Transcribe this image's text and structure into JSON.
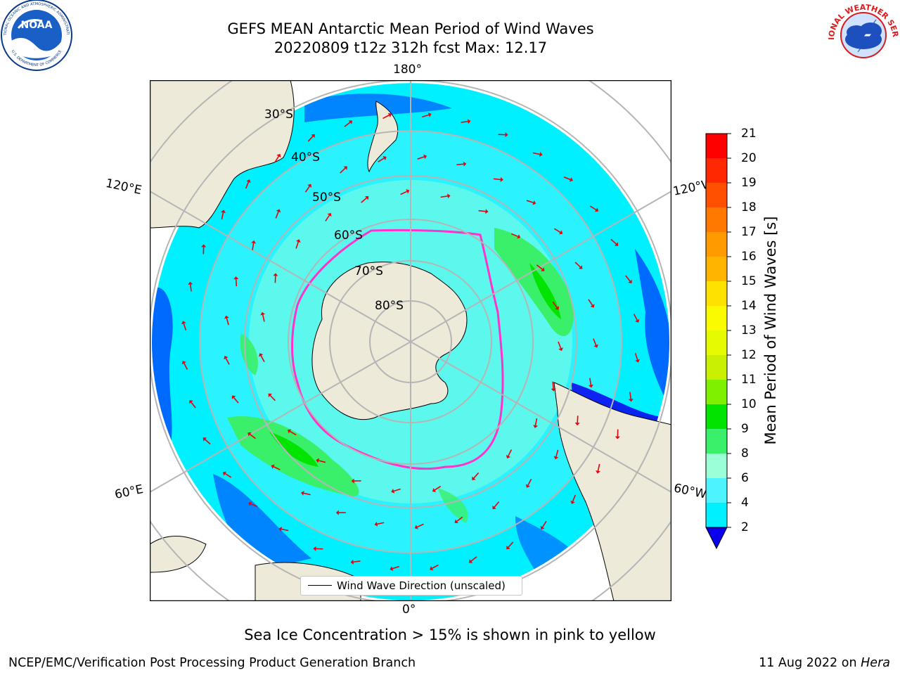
{
  "header": {
    "title_line1": "GEFS MEAN Antarctic Mean Period of Wind Waves",
    "title_line2": "20220809 t12z 312h fcst   Max: 12.17"
  },
  "logos": {
    "noaa_text": "NOAA",
    "noaa_ring_text": "NATIONAL OCEANIC AND ATMOSPHERIC ADMINISTRATION",
    "noaa_bottom_text": "U.S. DEPARTMENT OF COMMERCE",
    "nws_ring_text": "NATIONAL WEATHER SERVICE"
  },
  "map": {
    "longitude_labels": {
      "top": "180°",
      "bottom": "0°",
      "upper_left": "120°E",
      "lower_left": "60°E",
      "upper_right": "120°W",
      "lower_right": "60°W"
    },
    "latitude_labels": [
      "30°S",
      "40°S",
      "50°S",
      "60°S",
      "70°S",
      "80°S"
    ],
    "legend_label": "Wind Wave Direction (unscaled)",
    "colors": {
      "land": "#eeead9",
      "grid": "#b5b5b5",
      "sea_ice_edge": [
        "#ff33cc",
        "#ffcc00"
      ]
    }
  },
  "colorbar": {
    "label": "Mean Period of Wind Waves [s]",
    "ticks": [
      "21",
      "20",
      "19",
      "18",
      "17",
      "16",
      "15",
      "14",
      "13",
      "12",
      "11",
      "10",
      "9",
      "8",
      "6",
      "4",
      "2"
    ],
    "colors": [
      "#ff0000",
      "#ff2800",
      "#ff5000",
      "#ff7800",
      "#ff9a00",
      "#ffb400",
      "#ffe100",
      "#fafa00",
      "#e6fa00",
      "#c8f000",
      "#7ff000",
      "#00e400",
      "#3af06a",
      "#9bffd8",
      "#4df4ff",
      "#00f0ff",
      "#006aff"
    ],
    "under_color": "#0b00ee"
  },
  "footer": {
    "note": "Sea Ice Concentration > 15% is shown in pink to yellow",
    "credit": "NCEP/EMC/Verification Post Processing Product Generation Branch",
    "date": "11 Aug 2022 on",
    "machine": "Hera"
  }
}
